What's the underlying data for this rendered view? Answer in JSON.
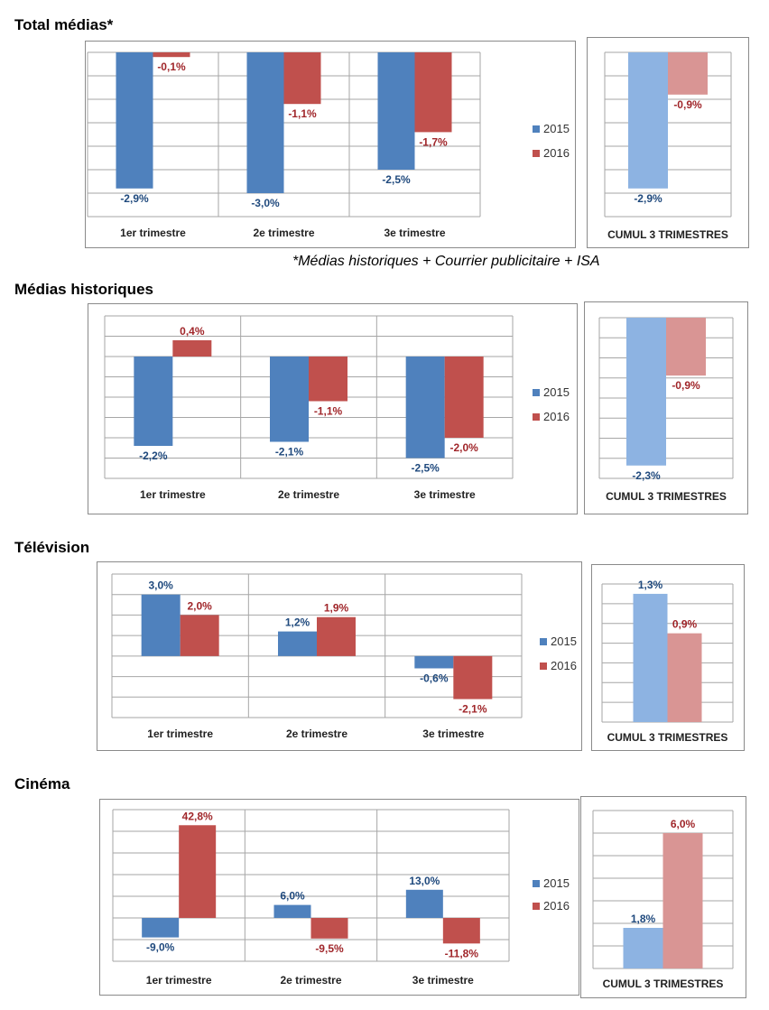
{
  "colors": {
    "s2015": "#4f81bd",
    "s2016": "#c0504d",
    "s2015_cumul": "#8db3e2",
    "s2016_cumul": "#d99594",
    "label2015": "#1f497d",
    "label2016": "#a0262a",
    "grid": "#a6a6a6"
  },
  "footnote": "*Médias historiques + Courrier publicitaire + ISA",
  "chart_data": [
    {
      "type": "bar",
      "title": "Total médias*",
      "categories": [
        "1er trimestre",
        "2e trimestre",
        "3e trimestre"
      ],
      "series": [
        {
          "name": "2015",
          "values": [
            -2.9,
            -3.0,
            -2.5
          ],
          "labels": [
            "-2,9%",
            "-3,0%",
            "-2,5%"
          ]
        },
        {
          "name": "2016",
          "values": [
            -0.1,
            -1.1,
            -1.7
          ],
          "labels": [
            "-0,1%",
            "-1,1%",
            "-1,7%"
          ]
        }
      ],
      "ylim": [
        -3.5,
        0
      ],
      "grid": true,
      "legend": "right",
      "cumul": {
        "label": "CUMUL 3 TRIMESTRES",
        "ylim": [
          -3.5,
          0
        ],
        "values": [
          -2.9,
          -0.9
        ],
        "labels": [
          "-2,9%",
          "-0,9%"
        ]
      }
    },
    {
      "type": "bar",
      "title": "Médias historiques",
      "categories": [
        "1er trimestre",
        "2e trimestre",
        "3e trimestre"
      ],
      "series": [
        {
          "name": "2015",
          "values": [
            -2.2,
            -2.1,
            -2.5
          ],
          "labels": [
            "-2,2%",
            "-2,1%",
            "-2,5%"
          ]
        },
        {
          "name": "2016",
          "values": [
            0.4,
            -1.1,
            -2.0
          ],
          "labels": [
            "0,4%",
            "-1,1%",
            "-2,0%"
          ]
        }
      ],
      "ylim": [
        -3.0,
        1.0
      ],
      "grid": true,
      "legend": "right",
      "cumul": {
        "label": "CUMUL 3 TRIMESTRES",
        "ylim": [
          -2.5,
          0
        ],
        "values": [
          -2.3,
          -0.9
        ],
        "labels": [
          "-2,3%",
          "-0,9%"
        ]
      }
    },
    {
      "type": "bar",
      "title": "Télévision",
      "categories": [
        "1er trimestre",
        "2e trimestre",
        "3e trimestre"
      ],
      "series": [
        {
          "name": "2015",
          "values": [
            3.0,
            1.2,
            -0.6
          ],
          "labels": [
            "3,0%",
            "1,2%",
            "-0,6%"
          ]
        },
        {
          "name": "2016",
          "values": [
            2.0,
            1.9,
            -2.1
          ],
          "labels": [
            "2,0%",
            "1,9%",
            "-2,1%"
          ]
        }
      ],
      "ylim": [
        -3.0,
        4.0
      ],
      "grid": true,
      "legend": "right",
      "cumul": {
        "label": "CUMUL 3 TRIMESTRES",
        "ylim": [
          0,
          1.4
        ],
        "values": [
          1.3,
          0.9
        ],
        "labels": [
          "1,3%",
          "0,9%"
        ]
      }
    },
    {
      "type": "bar",
      "title": "Cinéma",
      "categories": [
        "1er trimestre",
        "2e trimestre",
        "3e trimestre"
      ],
      "series": [
        {
          "name": "2015",
          "values": [
            -9.0,
            6.0,
            13.0
          ],
          "labels": [
            "-9,0%",
            "6,0%",
            "13,0%"
          ]
        },
        {
          "name": "2016",
          "values": [
            42.8,
            -9.5,
            -11.8
          ],
          "labels": [
            "42,8%",
            "-9,5%",
            "-11,8%"
          ]
        }
      ],
      "ylim": [
        -20,
        50
      ],
      "grid": true,
      "legend": "right",
      "cumul": {
        "label": "CUMUL 3 TRIMESTRES",
        "ylim": [
          0,
          7
        ],
        "values": [
          1.8,
          6.0
        ],
        "labels": [
          "1,8%",
          "6,0%"
        ]
      }
    }
  ]
}
